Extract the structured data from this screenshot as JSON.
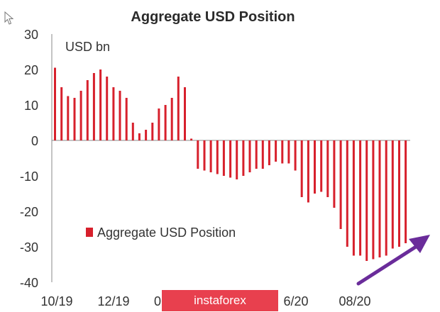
{
  "chart_data": {
    "type": "bar",
    "title": "Aggregate USD Position",
    "ylabel": "USD bn",
    "ylim": [
      -40,
      30
    ],
    "yticks": [
      30,
      20,
      10,
      0,
      -10,
      -20,
      -30,
      -40
    ],
    "xtick_labels": [
      "10/19",
      "12/19",
      "0",
      "6/20",
      "08/20"
    ],
    "legend": "bottom-left",
    "grid": false,
    "series": [
      {
        "name": "Aggregate USD Position",
        "color": "#d7202c",
        "values": [
          20.5,
          15,
          12.5,
          12,
          14,
          17,
          19,
          20,
          18,
          15,
          14,
          12,
          5,
          2,
          3,
          5,
          9,
          10,
          12,
          18,
          15,
          0.5,
          -8,
          -8.5,
          -9,
          -9.5,
          -10,
          -10.5,
          -11,
          -10,
          -9,
          -8,
          -8,
          -7,
          -6,
          -6.5,
          -6.5,
          -8.5,
          -16,
          -17.5,
          -15,
          -14.5,
          -16,
          -19,
          -25,
          -30,
          -32.5,
          -32.5,
          -34,
          -33.5,
          -33,
          -32.5,
          -30.5,
          -30,
          -29
        ]
      }
    ]
  },
  "watermark": "instaforex",
  "arrow_color": "#6a2c9a"
}
